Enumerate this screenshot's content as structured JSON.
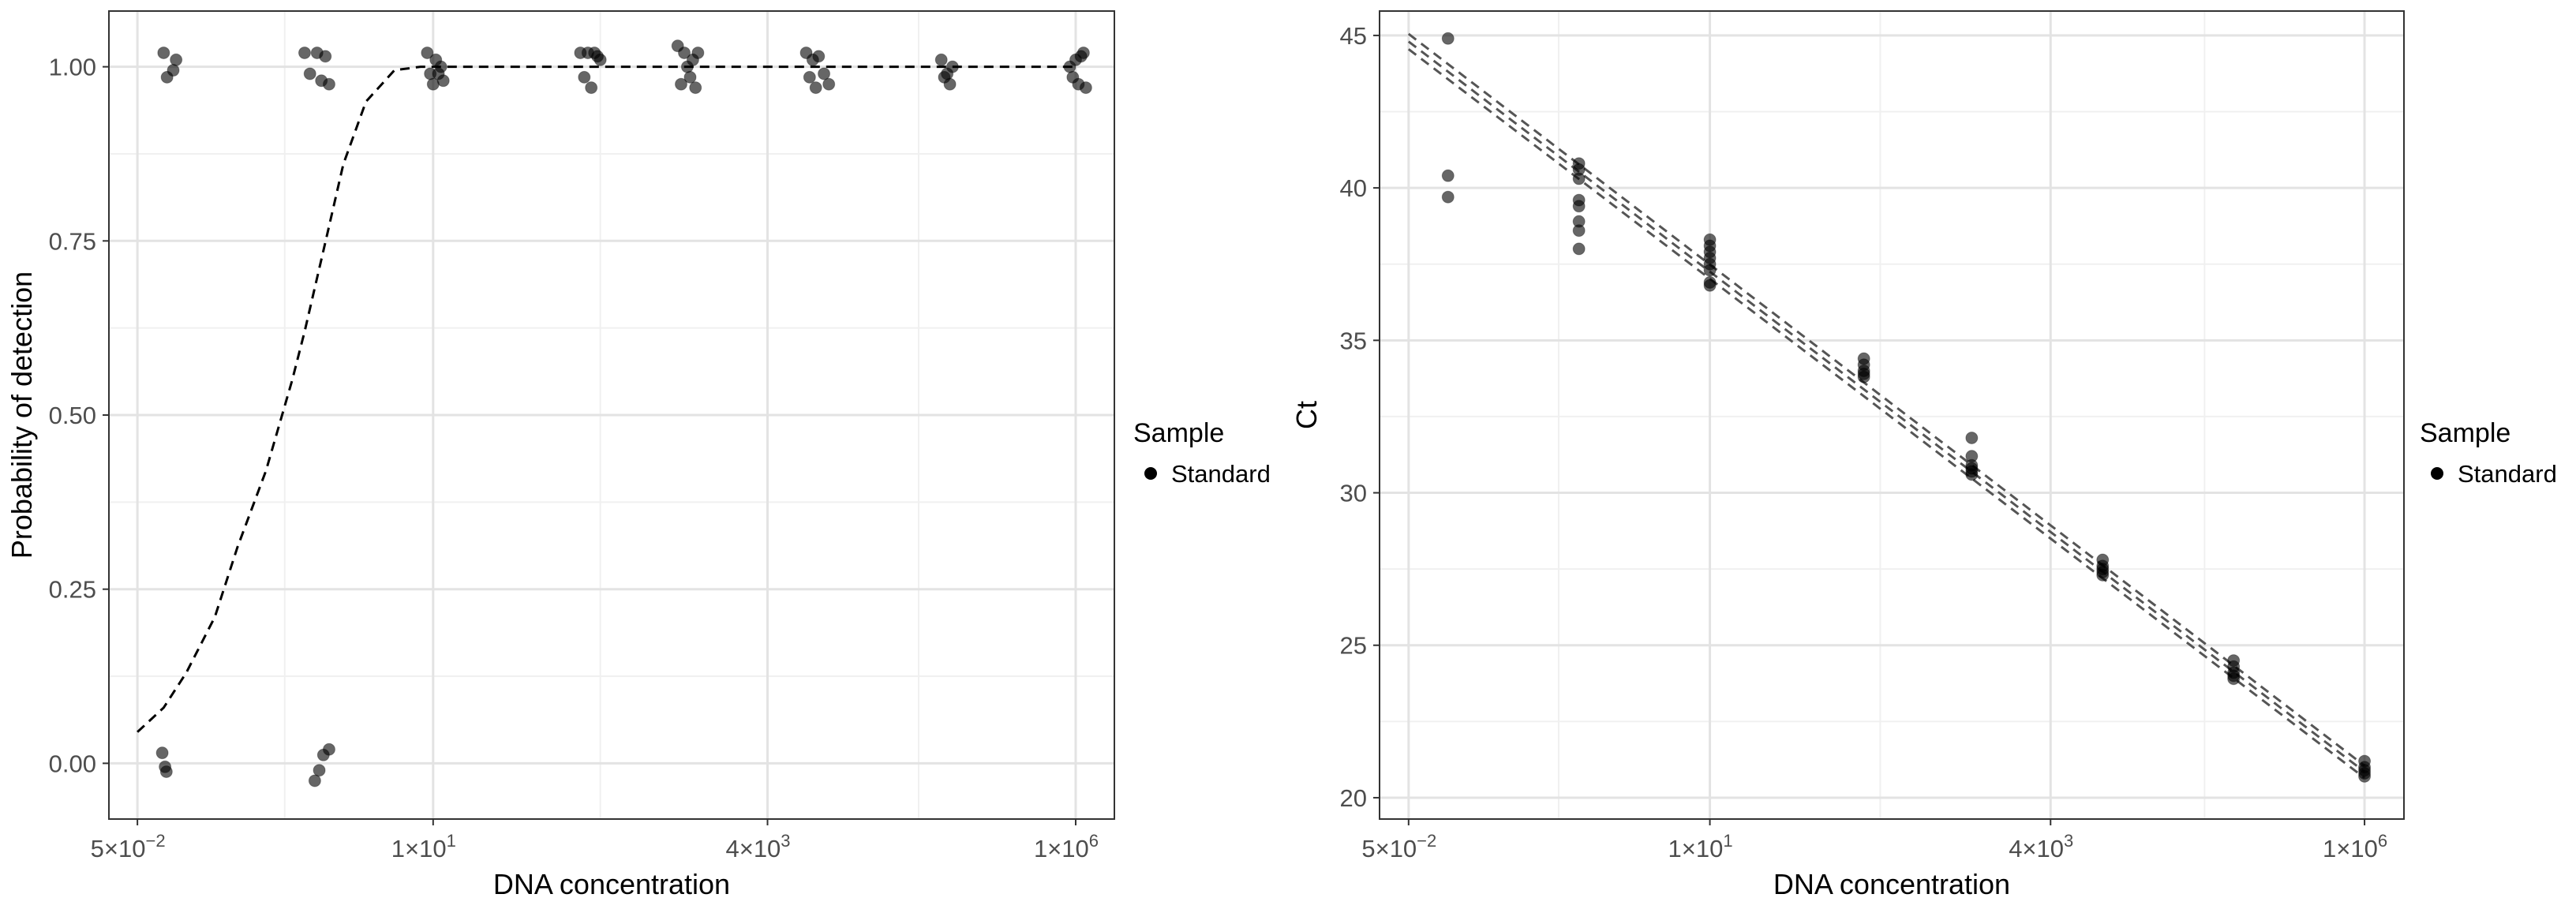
{
  "chart_data": [
    {
      "type": "scatter",
      "xlabel": "DNA concentration",
      "ylabel": "Probability of detection",
      "x_scale": "log10",
      "xlim": [
        0.03,
        2000000
      ],
      "ylim": [
        -0.08,
        1.08
      ],
      "x_ticks": [
        {
          "value": 0.05,
          "mantissa": "5",
          "exponent": "−2"
        },
        {
          "value": 10,
          "mantissa": "1",
          "exponent": "1"
        },
        {
          "value": 4000,
          "mantissa": "4",
          "exponent": "3"
        },
        {
          "value": 1000000,
          "mantissa": "1",
          "exponent": "6"
        }
      ],
      "x_minor_grid": [
        0.7,
        200,
        60000
      ],
      "y_ticks": [
        {
          "value": 0,
          "label": "0.00"
        },
        {
          "value": 0.25,
          "label": "0.25"
        },
        {
          "value": 0.5,
          "label": "0.50"
        },
        {
          "value": 0.75,
          "label": "0.75"
        },
        {
          "value": 1,
          "label": "1.00"
        }
      ],
      "y_minor_grid": [
        0.125,
        0.375,
        0.625,
        0.875
      ],
      "grid": true,
      "legend": {
        "title": "Sample",
        "placement": "right",
        "entries": [
          "Standard"
        ]
      },
      "series": [
        {
          "points": [
            [
              0.08,
              1.02
            ],
            [
              0.085,
              0.985
            ],
            [
              0.095,
              0.995
            ],
            [
              0.1,
              1.01
            ],
            [
              0.078,
              0.015
            ],
            [
              0.082,
              -0.005
            ],
            [
              0.084,
              -0.012
            ],
            [
              1.0,
              1.02
            ],
            [
              1.1,
              0.99
            ],
            [
              1.25,
              1.02
            ],
            [
              1.35,
              0.98
            ],
            [
              1.45,
              1.015
            ],
            [
              1.55,
              0.975
            ],
            [
              1.2,
              -0.025
            ],
            [
              1.3,
              -0.01
            ],
            [
              1.4,
              0.012
            ],
            [
              1.55,
              0.02
            ],
            [
              9.0,
              1.02
            ],
            [
              9.5,
              0.99
            ],
            [
              10.0,
              0.975
            ],
            [
              10.5,
              1.01
            ],
            [
              11.0,
              0.99
            ],
            [
              11.5,
              1.0
            ],
            [
              12.0,
              0.98
            ],
            [
              140,
              1.02
            ],
            [
              150,
              0.985
            ],
            [
              160,
              1.02
            ],
            [
              170,
              0.97
            ],
            [
              180,
              1.02
            ],
            [
              190,
              1.015
            ],
            [
              200,
              1.01
            ],
            [
              800,
              1.03
            ],
            [
              850,
              0.975
            ],
            [
              900,
              1.02
            ],
            [
              950,
              1.0
            ],
            [
              1000,
              0.985
            ],
            [
              1050,
              1.01
            ],
            [
              1100,
              0.97
            ],
            [
              1150,
              1.02
            ],
            [
              8000,
              1.02
            ],
            [
              8500,
              0.985
            ],
            [
              9000,
              1.01
            ],
            [
              9500,
              0.97
            ],
            [
              10000,
              1.015
            ],
            [
              11000,
              0.99
            ],
            [
              12000,
              0.975
            ],
            [
              90000,
              1.01
            ],
            [
              95000,
              0.985
            ],
            [
              100000,
              0.99
            ],
            [
              105000,
              0.975
            ],
            [
              110000,
              1.0
            ],
            [
              900000,
              1.0
            ],
            [
              950000,
              0.985
            ],
            [
              1000000,
              1.01
            ],
            [
              1050000,
              0.975
            ],
            [
              1100000,
              1.015
            ],
            [
              1150000,
              1.02
            ],
            [
              1200000,
              0.97
            ]
          ]
        }
      ],
      "fit_curve": {
        "style": "dashed",
        "points": [
          [
            0.05,
            0.045
          ],
          [
            0.08,
            0.08
          ],
          [
            0.12,
            0.13
          ],
          [
            0.2,
            0.21
          ],
          [
            0.3,
            0.31
          ],
          [
            0.5,
            0.42
          ],
          [
            0.8,
            0.55
          ],
          [
            1.0,
            0.62
          ],
          [
            1.5,
            0.76
          ],
          [
            2.0,
            0.86
          ],
          [
            3.0,
            0.95
          ],
          [
            5.0,
            0.995
          ],
          [
            8.0,
            1.0
          ],
          [
            1000000,
            1.0
          ]
        ]
      }
    },
    {
      "type": "scatter",
      "xlabel": "DNA concentration",
      "ylabel": "Ct",
      "x_scale": "log10",
      "xlim": [
        0.03,
        2000000
      ],
      "ylim": [
        19.3,
        45.8
      ],
      "x_ticks": [
        {
          "value": 0.05,
          "mantissa": "5",
          "exponent": "−2"
        },
        {
          "value": 10,
          "mantissa": "1",
          "exponent": "1"
        },
        {
          "value": 4000,
          "mantissa": "4",
          "exponent": "3"
        },
        {
          "value": 1000000,
          "mantissa": "1",
          "exponent": "6"
        }
      ],
      "x_minor_grid": [
        0.7,
        200,
        60000
      ],
      "y_ticks": [
        {
          "value": 20,
          "label": "20"
        },
        {
          "value": 25,
          "label": "25"
        },
        {
          "value": 30,
          "label": "30"
        },
        {
          "value": 35,
          "label": "35"
        },
        {
          "value": 40,
          "label": "40"
        },
        {
          "value": 45,
          "label": "45"
        }
      ],
      "y_minor_grid": [
        22.5,
        27.5,
        32.5,
        37.5,
        42.5
      ],
      "grid": true,
      "legend": {
        "title": "Sample",
        "placement": "right",
        "entries": [
          "Standard"
        ]
      },
      "series": [
        {
          "points": [
            [
              0.1,
              44.9
            ],
            [
              0.1,
              40.4
            ],
            [
              0.1,
              39.7
            ],
            [
              1.0,
              40.8
            ],
            [
              1.0,
              40.6
            ],
            [
              1.0,
              40.3
            ],
            [
              1.0,
              39.6
            ],
            [
              1.0,
              39.4
            ],
            [
              1.0,
              38.9
            ],
            [
              1.0,
              38.6
            ],
            [
              1.0,
              38.0
            ],
            [
              10,
              38.3
            ],
            [
              10,
              38.1
            ],
            [
              10,
              37.9
            ],
            [
              10,
              37.7
            ],
            [
              10,
              37.5
            ],
            [
              10,
              37.3
            ],
            [
              10,
              36.9
            ],
            [
              10,
              36.8
            ],
            [
              150,
              34.4
            ],
            [
              150,
              34.2
            ],
            [
              150,
              34.0
            ],
            [
              150,
              33.9
            ],
            [
              150,
              33.8
            ],
            [
              1000,
              31.8
            ],
            [
              1000,
              31.2
            ],
            [
              1000,
              30.9
            ],
            [
              1000,
              30.8
            ],
            [
              1000,
              30.7
            ],
            [
              1000,
              30.6
            ],
            [
              10000,
              27.8
            ],
            [
              10000,
              27.6
            ],
            [
              10000,
              27.5
            ],
            [
              10000,
              27.4
            ],
            [
              10000,
              27.3
            ],
            [
              100000,
              24.5
            ],
            [
              100000,
              24.3
            ],
            [
              100000,
              24.1
            ],
            [
              100000,
              24.0
            ],
            [
              100000,
              23.9
            ],
            [
              1000000,
              21.2
            ],
            [
              1000000,
              21.0
            ],
            [
              1000000,
              20.9
            ],
            [
              1000000,
              20.8
            ],
            [
              1000000,
              20.7
            ]
          ]
        }
      ],
      "fit_lines": [
        {
          "style": "dashed",
          "from": [
            0.05,
            44.55
          ],
          "to": [
            1000000,
            20.65
          ]
        },
        {
          "style": "dashed",
          "from": [
            0.05,
            44.8
          ],
          "to": [
            1000000,
            20.85
          ]
        },
        {
          "style": "dashed",
          "from": [
            0.05,
            45.05
          ],
          "to": [
            1000000,
            21.05
          ]
        }
      ]
    }
  ]
}
